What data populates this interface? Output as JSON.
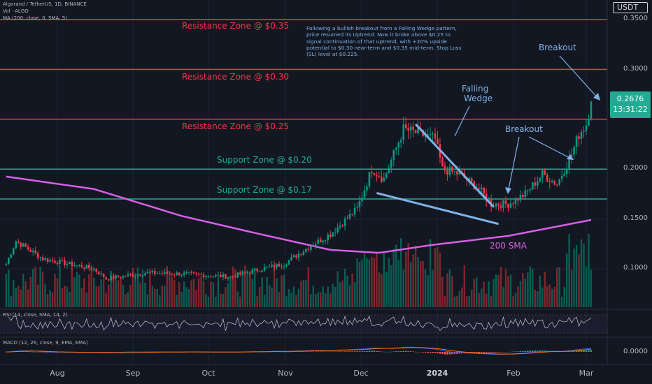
{
  "header": {
    "symbol_line": "Algorand / TetherUS, 1D, BINANCE",
    "volume_line": "Vol · ALGO",
    "ma_line": "MA (200, close, 0, SMA, 5)"
  },
  "currency_button": "USDT",
  "last_price": "0.2676",
  "countdown": "13:31:22",
  "zones": {
    "r035": "Resistance Zone @ $0.35",
    "r030": "Resistance Zone @ $0.30",
    "r025": "Resistance Zone @ $0.25",
    "s020": "Support Zone @ $0.20",
    "s017": "Support Zone @ $0.17"
  },
  "annotations": {
    "note": "Following a bullish breakout from a Falling Wedge pattern, price resumed its Uptrend. Now it broke above $0.25 to signal continuation of that uptrend, with +20% upside potential to $0.30 near-term and $0.35 mid-term. Stop Loss (SL) level at $0.225.",
    "falling_wedge_1": "Falling",
    "falling_wedge_2": "Wedge",
    "breakout_1": "Breakout",
    "breakout_2": "Breakout",
    "sma_label": "200 SMA"
  },
  "panes": {
    "rsi_label": "RSI (14, close, SMA, 14, 2)",
    "macd_label": "MACD (12, 26, close, 9, EMA, EMA)"
  },
  "y_axis": [
    "0.3500",
    "0.3000",
    "0.2500",
    "0.2000",
    "0.1500",
    "0.1000"
  ],
  "macd_axis": "0.0000",
  "x_axis": [
    {
      "label": "Aug",
      "bold": false
    },
    {
      "label": "Sep",
      "bold": false
    },
    {
      "label": "Oct",
      "bold": false
    },
    {
      "label": "Nov",
      "bold": false
    },
    {
      "label": "Dec",
      "bold": false
    },
    {
      "label": "2024",
      "bold": true
    },
    {
      "label": "Feb",
      "bold": false
    },
    {
      "label": "Mar",
      "bold": false
    }
  ],
  "colors": {
    "background": "#131722",
    "up": "#089981",
    "down": "#f23645",
    "resistance": "#f23645",
    "support": "#22ab94",
    "sma": "#d760e6",
    "annotation": "#7fb2e5",
    "macd_line": "#2962ff",
    "signal_line": "#ff6d00"
  },
  "chart_data": {
    "type": "candlestick",
    "interval": "1D",
    "x_range": [
      "2023-07-10",
      "2024-03-06"
    ],
    "y_range": [
      0.05,
      0.36
    ],
    "horizontal_levels": [
      0.35,
      0.3,
      0.25,
      0.2,
      0.17
    ],
    "close_anchors": [
      {
        "date": "2023-07-10",
        "close": 0.105
      },
      {
        "date": "2023-07-14",
        "close": 0.128
      },
      {
        "date": "2023-07-25",
        "close": 0.11
      },
      {
        "date": "2023-08-15",
        "close": 0.1
      },
      {
        "date": "2023-08-20",
        "close": 0.09
      },
      {
        "date": "2023-09-05",
        "close": 0.096
      },
      {
        "date": "2023-09-20",
        "close": 0.095
      },
      {
        "date": "2023-10-10",
        "close": 0.092
      },
      {
        "date": "2023-10-23",
        "close": 0.1
      },
      {
        "date": "2023-11-01",
        "close": 0.105
      },
      {
        "date": "2023-11-10",
        "close": 0.12
      },
      {
        "date": "2023-11-20",
        "close": 0.135
      },
      {
        "date": "2023-12-01",
        "close": 0.16
      },
      {
        "date": "2023-12-07",
        "close": 0.2
      },
      {
        "date": "2023-12-12",
        "close": 0.19
      },
      {
        "date": "2023-12-20",
        "close": 0.24
      },
      {
        "date": "2023-12-27",
        "close": 0.235
      },
      {
        "date": "2024-01-02",
        "close": 0.23
      },
      {
        "date": "2024-01-05",
        "close": 0.2
      },
      {
        "date": "2024-01-12",
        "close": 0.195
      },
      {
        "date": "2024-01-20",
        "close": 0.18
      },
      {
        "date": "2024-01-25",
        "close": 0.165
      },
      {
        "date": "2024-02-01",
        "close": 0.165
      },
      {
        "date": "2024-02-08",
        "close": 0.175
      },
      {
        "date": "2024-02-15",
        "close": 0.195
      },
      {
        "date": "2024-02-21",
        "close": 0.185
      },
      {
        "date": "2024-02-27",
        "close": 0.215
      },
      {
        "date": "2024-03-01",
        "close": 0.235
      },
      {
        "date": "2024-03-04",
        "close": 0.245
      },
      {
        "date": "2024-03-06",
        "close": 0.2676
      }
    ],
    "sma200_anchors": [
      {
        "date": "2023-07-10",
        "value": 0.1925
      },
      {
        "date": "2023-08-15",
        "value": 0.18
      },
      {
        "date": "2023-09-20",
        "value": 0.153
      },
      {
        "date": "2023-10-20",
        "value": 0.136
      },
      {
        "date": "2023-11-20",
        "value": 0.119
      },
      {
        "date": "2023-12-10",
        "value": 0.116
      },
      {
        "date": "2024-01-01",
        "value": 0.124
      },
      {
        "date": "2024-02-01",
        "value": 0.133
      },
      {
        "date": "2024-03-06",
        "value": 0.149
      }
    ],
    "falling_wedge": {
      "upper": [
        {
          "date": "2023-12-25",
          "value": 0.245
        },
        {
          "date": "2024-01-26",
          "value": 0.162
        }
      ],
      "lower": [
        {
          "date": "2023-12-09",
          "value": 0.176
        },
        {
          "date": "2024-01-28",
          "value": 0.145
        }
      ]
    }
  }
}
